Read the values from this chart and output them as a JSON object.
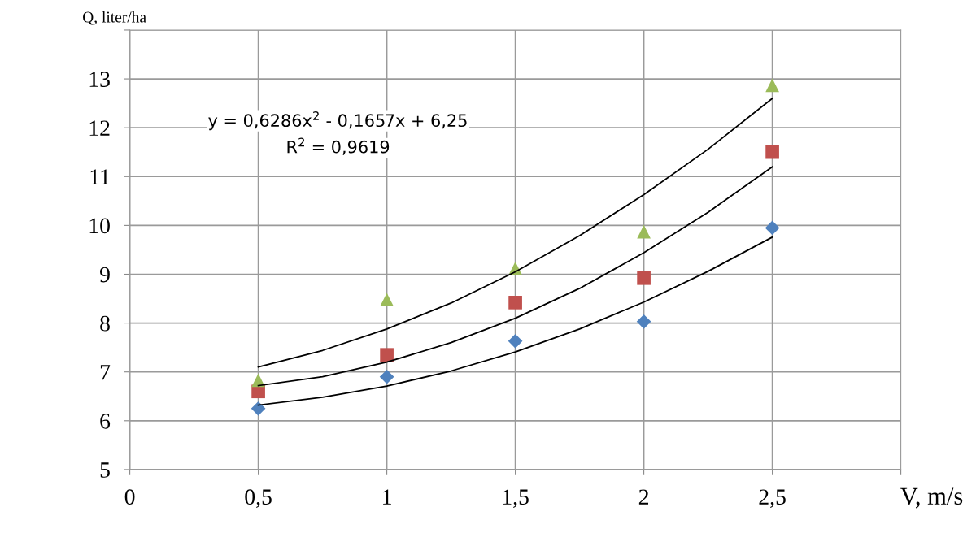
{
  "chart_data": {
    "type": "scatter",
    "xlabel": "V, m/s",
    "ylabel": "Q, liter/ha",
    "xlim": [
      0,
      3
    ],
    "ylim": [
      5,
      14
    ],
    "xticks": [
      0,
      {
        "value": 0.5,
        "label": "0,5"
      },
      1,
      {
        "value": 1.5,
        "label": "1,5"
      },
      2,
      {
        "value": 2.5,
        "label": "2,5"
      },
      {
        "value": 3,
        "label": null
      }
    ],
    "yticks": [
      5,
      6,
      7,
      8,
      9,
      10,
      11,
      12,
      13,
      {
        "value": 14,
        "label": null
      }
    ],
    "grid": true,
    "legend": false,
    "annotations": [
      "y = 0,6286x$^{2}$ - 0,1657x + 6,25",
      "R$^{2}$ = 0,9619"
    ],
    "series": [
      {
        "marker": "diamond",
        "color": "#4f81bd",
        "x": [
          0.5,
          1,
          1.5,
          2,
          2.5
        ],
        "values": [
          6.25,
          6.9,
          7.63,
          8.03,
          9.95
        ]
      },
      {
        "marker": "square",
        "color": "#c0504d",
        "x": [
          0.5,
          1,
          1.5,
          2,
          2.5
        ],
        "values": [
          6.6,
          7.35,
          8.42,
          8.92,
          11.5
        ]
      },
      {
        "marker": "triangle",
        "color": "#9bbb59",
        "x": [
          0.5,
          1,
          1.5,
          2,
          2.5
        ],
        "values": [
          6.83,
          8.48,
          9.12,
          9.87,
          12.87
        ]
      },
      {
        "type": "line",
        "marker": "none",
        "color": "#000000",
        "x": [
          0.5,
          0.75,
          1,
          1.25,
          1.5,
          1.75,
          2,
          2.25,
          2.5
        ],
        "values": [
          6.32,
          6.48,
          6.71,
          7.02,
          7.41,
          7.88,
          8.43,
          9.06,
          9.76
        ]
      },
      {
        "type": "line",
        "marker": "none",
        "color": "#000000",
        "x": [
          0.5,
          0.75,
          1,
          1.25,
          1.5,
          1.75,
          2,
          2.25,
          2.5
        ],
        "values": [
          6.72,
          6.9,
          7.2,
          7.6,
          8.1,
          8.71,
          9.44,
          10.27,
          11.2
        ]
      },
      {
        "type": "line",
        "marker": "none",
        "color": "#000000",
        "x": [
          0.5,
          0.75,
          1,
          1.25,
          1.5,
          1.75,
          2,
          2.25,
          2.5
        ],
        "values": [
          7.1,
          7.44,
          7.88,
          8.41,
          9.05,
          9.79,
          10.63,
          11.56,
          12.6
        ]
      }
    ]
  }
}
